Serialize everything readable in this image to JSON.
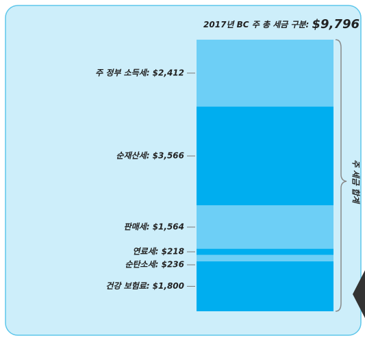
{
  "chart_data": {
    "type": "bar",
    "stacked": true,
    "title": "2017년 BC 주 총 세금 구분:",
    "total": {
      "value": 9796,
      "label": "$9,796"
    },
    "brace_label": "주 세금 합계",
    "values": [
      2412,
      3566,
      1564,
      218,
      236,
      1800
    ],
    "value_labels": [
      "주 정부 소득세: $2,412",
      "순재산세: $3,566",
      "판매세: $1,564",
      "연료세: $218",
      "순탄소세: $236",
      "건강 보험료: $1,800"
    ],
    "colors": [
      "#6dcff6",
      "#00aeef",
      "#6dcff6",
      "#00aeef",
      "#6dcff6",
      "#00aeef"
    ]
  }
}
